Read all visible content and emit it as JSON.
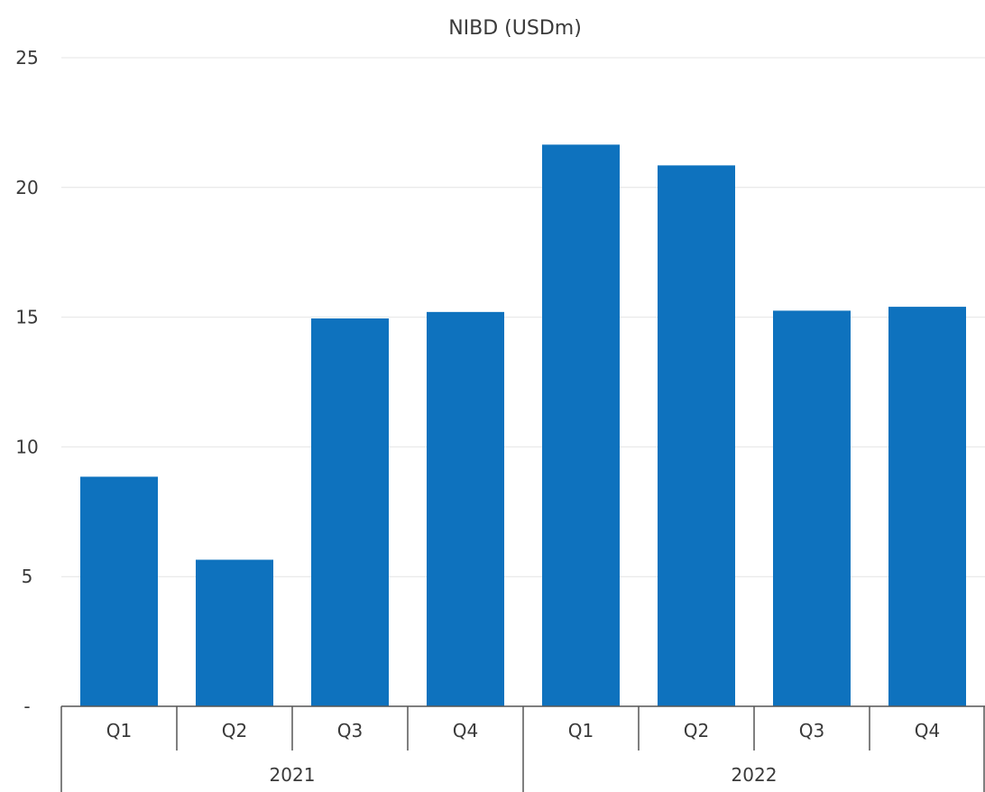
{
  "chart_data": {
    "type": "bar",
    "title": "NIBD (USDm)",
    "categories": [
      "Q1",
      "Q2",
      "Q3",
      "Q4",
      "Q1",
      "Q2",
      "Q3",
      "Q4"
    ],
    "groups": [
      {
        "label": "2021",
        "count": 4
      },
      {
        "label": "2022",
        "count": 4
      }
    ],
    "values": [
      8.85,
      5.65,
      14.95,
      15.2,
      21.65,
      20.85,
      15.25,
      15.4
    ],
    "ylim": [
      0,
      25
    ],
    "yticks": [
      {
        "value": 0,
        "label": "-"
      },
      {
        "value": 5,
        "label": "5"
      },
      {
        "value": 10,
        "label": "10"
      },
      {
        "value": 15,
        "label": "15"
      },
      {
        "value": 20,
        "label": "20"
      },
      {
        "value": 25,
        "label": "25"
      }
    ],
    "bar_color": "#0e72be",
    "grid": true,
    "legend": "none"
  }
}
